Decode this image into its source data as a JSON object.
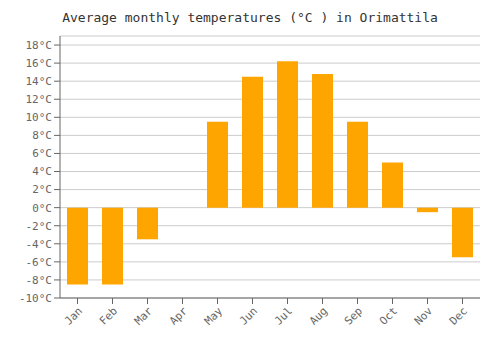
{
  "chart_data": {
    "type": "bar",
    "title": "Average monthly temperatures (°C ) in Orimattila",
    "categories": [
      "Jan",
      "Feb",
      "Mar",
      "Apr",
      "May",
      "Jun",
      "Jul",
      "Aug",
      "Sep",
      "Oct",
      "Nov",
      "Dec"
    ],
    "values": [
      -8.5,
      -8.5,
      -3.5,
      0.0,
      9.5,
      14.5,
      16.2,
      14.8,
      9.5,
      5.0,
      -0.5,
      -5.5
    ],
    "color": "#FFA500",
    "ylim": [
      -10,
      19
    ],
    "yticks": [
      {
        "value": -10,
        "label": "-10°C"
      },
      {
        "value": -8,
        "label": "-8°C"
      },
      {
        "value": -6,
        "label": "-6°C"
      },
      {
        "value": -4,
        "label": "-4°C"
      },
      {
        "value": -2,
        "label": "-2°C"
      },
      {
        "value": 0,
        "label": "0°C"
      },
      {
        "value": 2,
        "label": "2°C"
      },
      {
        "value": 4,
        "label": "4°C"
      },
      {
        "value": 6,
        "label": "6°C"
      },
      {
        "value": 8,
        "label": "8°C"
      },
      {
        "value": 10,
        "label": "10°C"
      },
      {
        "value": 12,
        "label": "12°C"
      },
      {
        "value": 14,
        "label": "14°C"
      },
      {
        "value": 16,
        "label": "16°C"
      },
      {
        "value": 18,
        "label": "18°C"
      }
    ],
    "grid": true
  }
}
